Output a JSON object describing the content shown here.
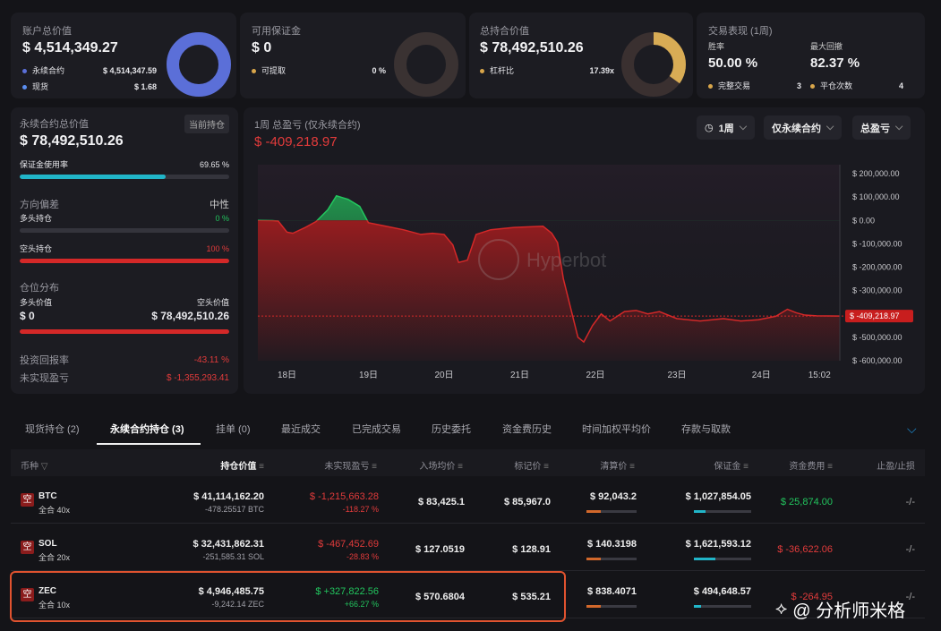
{
  "account": {
    "title": "账户总价值",
    "value": "$ 4,514,349.27",
    "rows": [
      {
        "label": "永续合约",
        "value": "$ 4,514,347.59",
        "color": "#5b6fd8"
      },
      {
        "label": "现货",
        "value": "$ 1.68",
        "color": "#5b8ef0"
      }
    ]
  },
  "margin": {
    "title": "可用保证金",
    "value": "$ 0",
    "row": {
      "label": "可提取",
      "value": "0 %"
    }
  },
  "holdings": {
    "title": "总持合价值",
    "value": "$ 78,492,510.26",
    "row": {
      "label": "杠杆比",
      "value": "17.39x"
    },
    "donut_fraction": 0.35
  },
  "trading": {
    "title": "交易表现 (1周)",
    "win_label": "胜率",
    "win": "50.00 %",
    "dd_label": "最大回撤",
    "dd": "82.37 %",
    "done_label": "完整交易",
    "done": "3",
    "close_label": "平仓次数",
    "close": "4"
  },
  "perp": {
    "title": "永续合约总价值",
    "badge": "当前持仓",
    "value": "$ 78,492,510.26",
    "margin_label": "保证金使用率",
    "margin_pct": "69.65 %",
    "margin_fill": 0.6965,
    "bias_title": "方向偏差",
    "bias_value": "中性",
    "long_label": "多头持仓",
    "long_pct": "0 %",
    "short_label": "空头持仓",
    "short_pct": "100 %",
    "dist_title": "仓位分布",
    "long_val_label": "多头价值",
    "short_val_label": "空头价值",
    "long_val": "$ 0",
    "short_val": "$ 78,492,510.26",
    "roi_label": "投资回报率",
    "roi": "-43.11 %",
    "upnl_label": "未实现盈亏",
    "upnl": "$ -1,355,293.41"
  },
  "chart": {
    "title": "1周 总盈亏 (仅永续合约)",
    "value": "$ -409,218.97",
    "filter_period": "1周",
    "filter_type": "仅永续合约",
    "filter_metric": "总盈亏",
    "watermark": "Hyperbot",
    "tag": "$ -409,218.97"
  },
  "chart_data": {
    "type": "area",
    "y_ticks": [
      "$ 200,000.00",
      "$ 100,000.00",
      "$ 0.00",
      "$ -100,000.00",
      "$ -200,000.00",
      "$ -300,000.00",
      "$ -400,000.00",
      "$ -500,000.00",
      "$ -600,000.00"
    ],
    "ylim": [
      -600000,
      200000
    ],
    "x_ticks": [
      "18日",
      "19日",
      "20日",
      "21日",
      "22日",
      "23日",
      "24日",
      "15:02"
    ],
    "points": [
      [
        0,
        0
      ],
      [
        0.025,
        -1000
      ],
      [
        0.035,
        -3000
      ],
      [
        0.05,
        -50000
      ],
      [
        0.06,
        -55000
      ],
      [
        0.08,
        -32000
      ],
      [
        0.1,
        -5000
      ],
      [
        0.12,
        45000
      ],
      [
        0.135,
        105000
      ],
      [
        0.155,
        90000
      ],
      [
        0.175,
        60000
      ],
      [
        0.19,
        -10000
      ],
      [
        0.22,
        -25000
      ],
      [
        0.25,
        -40000
      ],
      [
        0.28,
        -60000
      ],
      [
        0.3,
        -55000
      ],
      [
        0.32,
        -60000
      ],
      [
        0.335,
        -105000
      ],
      [
        0.345,
        -180000
      ],
      [
        0.36,
        -170000
      ],
      [
        0.375,
        -60000
      ],
      [
        0.4,
        -40000
      ],
      [
        0.44,
        -30000
      ],
      [
        0.49,
        -25000
      ],
      [
        0.505,
        -55000
      ],
      [
        0.515,
        -95000
      ],
      [
        0.525,
        -250000
      ],
      [
        0.535,
        -350000
      ],
      [
        0.55,
        -500000
      ],
      [
        0.56,
        -520000
      ],
      [
        0.575,
        -450000
      ],
      [
        0.59,
        -400000
      ],
      [
        0.605,
        -430000
      ],
      [
        0.63,
        -390000
      ],
      [
        0.65,
        -385000
      ],
      [
        0.67,
        -400000
      ],
      [
        0.69,
        -390000
      ],
      [
        0.72,
        -420000
      ],
      [
        0.76,
        -430000
      ],
      [
        0.8,
        -420000
      ],
      [
        0.83,
        -430000
      ],
      [
        0.86,
        -425000
      ],
      [
        0.89,
        -410000
      ],
      [
        0.91,
        -380000
      ],
      [
        0.925,
        -395000
      ],
      [
        0.94,
        -405000
      ],
      [
        0.96,
        -408000
      ],
      [
        1,
        -409219
      ]
    ]
  },
  "tabs": [
    "现货持仓 (2)",
    "永续合约持仓 (3)",
    "挂单 (0)",
    "最近成交",
    "已完成交易",
    "历史委托",
    "资金费历史",
    "时间加权平均价",
    "存款与取款"
  ],
  "columns": [
    "币种",
    "持仓价值",
    "未实现盈亏",
    "入场均价",
    "标记价",
    "清算价",
    "保证金",
    "资金费用",
    "止盈/止损"
  ],
  "positions": [
    {
      "side": "空",
      "coin": "BTC",
      "mode": "全合 40x",
      "value": "$ 41,114,162.20",
      "size": "-478.25517 BTC",
      "pnl": "$ -1,215,663.28",
      "pnl_pct": "-118.27 %",
      "pnl_color": "red",
      "entry": "$ 83,425.1",
      "mark": "$ 85,967.0",
      "liq": "$ 92,043.2",
      "margin": "$ 1,027,854.05",
      "margin_fill": 0.2,
      "funding": "$ 25,874.00",
      "funding_color": "green",
      "tpsl": "-/-"
    },
    {
      "side": "空",
      "coin": "SOL",
      "mode": "全合 20x",
      "value": "$ 32,431,862.31",
      "size": "-251,585.31 SOL",
      "pnl": "$ -467,452.69",
      "pnl_pct": "-28.83 %",
      "pnl_color": "red",
      "entry": "$ 127.0519",
      "mark": "$ 128.91",
      "liq": "$ 140.3198",
      "margin": "$ 1,621,593.12",
      "margin_fill": 0.38,
      "funding": "$ -36,622.06",
      "funding_color": "red",
      "tpsl": "-/-"
    },
    {
      "side": "空",
      "coin": "ZEC",
      "mode": "全合 10x",
      "value": "$ 4,946,485.75",
      "size": "-9,242.14 ZEC",
      "pnl": "$ +327,822.56",
      "pnl_pct": "+66.27 %",
      "pnl_color": "green",
      "entry": "$ 570.6804",
      "mark": "$ 535.21",
      "liq": "$ 838.4071",
      "margin": "$ 494,648.57",
      "margin_fill": 0.12,
      "funding": "$ -264.95",
      "funding_color": "red",
      "tpsl": "-/-"
    }
  ],
  "watermark_text": "@ 分析师米格"
}
